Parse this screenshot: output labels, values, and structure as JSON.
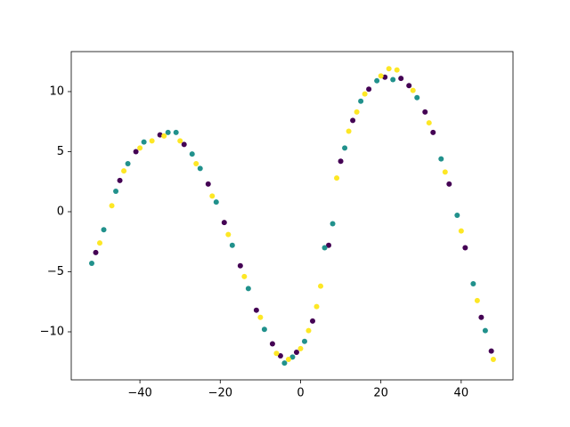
{
  "chart_data": {
    "type": "scatter",
    "xlim": [
      -57.1,
      52.9
    ],
    "ylim": [
      -14.0,
      13.33
    ],
    "xticks": [
      {
        "value": -40,
        "label": "−40"
      },
      {
        "value": -20,
        "label": "−20"
      },
      0,
      20,
      40
    ],
    "yticks": [
      {
        "value": -10,
        "label": "−10"
      },
      {
        "value": -5,
        "label": "−5"
      },
      0,
      5,
      10
    ],
    "series": [
      {
        "color": "#440154",
        "x": [
          -51,
          -45,
          -41,
          -35,
          -29,
          -23,
          -19,
          -15,
          -11,
          -7,
          -5,
          -1,
          3,
          7,
          10,
          13,
          17,
          21,
          25,
          27,
          31,
          33,
          37,
          41,
          45,
          47.5
        ],
        "y": [
          -3.4,
          2.6,
          5.0,
          6.4,
          5.6,
          2.3,
          -0.9,
          -4.5,
          -8.2,
          -11.0,
          -12.0,
          -11.7,
          -9.1,
          -2.8,
          4.2,
          7.6,
          10.2,
          11.2,
          11.1,
          10.5,
          8.3,
          6.6,
          2.3,
          -3.0,
          -8.8,
          -11.6
        ]
      },
      {
        "color": "#21918c",
        "x": [
          -52,
          -49,
          -46,
          -43,
          -39,
          -33,
          -31,
          -27,
          -25,
          -21,
          -17,
          -13,
          -9,
          -4,
          -2,
          1,
          6,
          8,
          11,
          15,
          19,
          23,
          29,
          35,
          39,
          43,
          46
        ],
        "y": [
          -4.3,
          -1.5,
          1.7,
          4.0,
          5.8,
          6.6,
          6.6,
          4.8,
          3.6,
          0.8,
          -2.8,
          -6.4,
          -9.8,
          -12.6,
          -12.1,
          -10.8,
          -3.0,
          -1.0,
          5.3,
          9.2,
          10.9,
          11.0,
          9.5,
          4.4,
          -0.3,
          -6.0,
          -9.9
        ]
      },
      {
        "color": "#fde725",
        "x": [
          -50,
          -47,
          -44,
          -40,
          -37,
          -34,
          -30,
          -26,
          -22,
          -18,
          -14,
          -10,
          -6,
          -3,
          0,
          2,
          4,
          5,
          9,
          12,
          14,
          16,
          20,
          22,
          24,
          28,
          32,
          36,
          40,
          44,
          48
        ],
        "y": [
          -2.6,
          0.5,
          3.4,
          5.3,
          5.9,
          6.3,
          5.9,
          4.0,
          1.3,
          -1.9,
          -5.4,
          -8.8,
          -11.8,
          -12.3,
          -11.4,
          -9.9,
          -7.9,
          -6.2,
          2.8,
          6.7,
          8.3,
          9.8,
          11.3,
          11.9,
          11.8,
          10.1,
          7.4,
          3.3,
          -1.6,
          -7.4,
          -12.3
        ]
      }
    ]
  }
}
